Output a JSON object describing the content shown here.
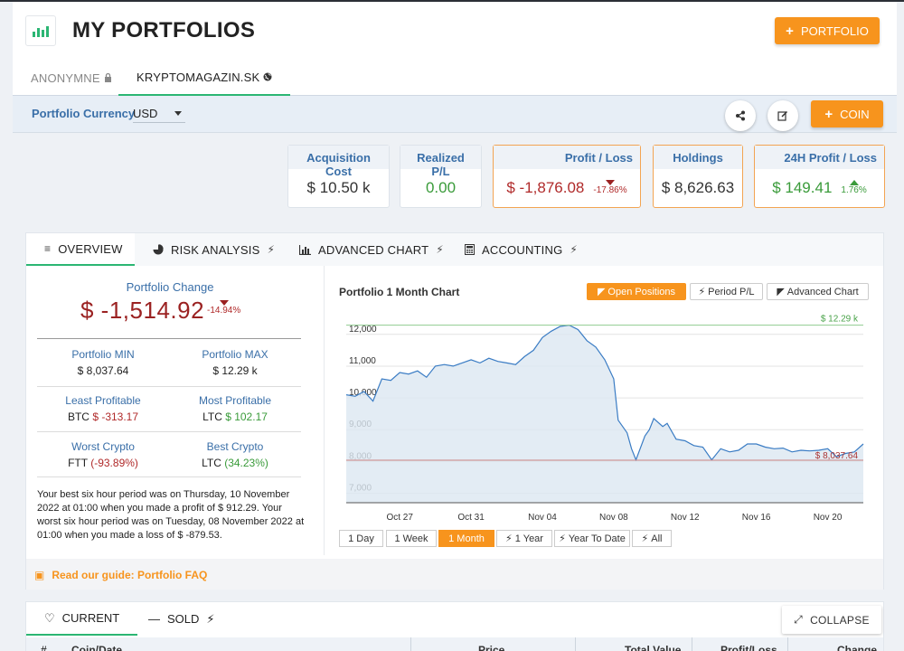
{
  "header": {
    "title": "MY PORTFOLIOS",
    "add_portfolio": "PORTFOLIO"
  },
  "portfolio_tabs": [
    {
      "label": "ANONYMNE",
      "icon": "lock-icon"
    },
    {
      "label": "KRYPTOMAGAZIN.SK",
      "icon": "globe-icon"
    }
  ],
  "currency": {
    "label": "Portfolio Currency",
    "value": "USD"
  },
  "toolbar": {
    "add_coin": "COIN"
  },
  "cards": {
    "acquisition": {
      "title": "Acquisition Cost",
      "value": "$ 10.50 k"
    },
    "realized": {
      "title": "Realized P/L",
      "value": "0.00"
    },
    "profit_loss": {
      "title": "Profit / Loss",
      "value": "$ -1,876.08",
      "change": "-17.86%"
    },
    "holdings": {
      "title": "Holdings",
      "value": "$ 8,626.63"
    },
    "h24": {
      "title": "24H Profit / Loss",
      "value": "$ 149.41",
      "change": "1.76%"
    }
  },
  "overview_tabs": [
    "OVERVIEW",
    "RISK ANALYSIS",
    "ADVANCED CHART",
    "ACCOUNTING"
  ],
  "overview": {
    "change_label": "Portfolio Change",
    "change_value": "$ -1,514.92",
    "change_pct": "-14.94%",
    "min_label": "Portfolio MIN",
    "min_value": "$ 8,037.64",
    "max_label": "Portfolio MAX",
    "max_value": "$ 12.29 k",
    "least_label": "Least Profitable",
    "least_coin": "BTC",
    "least_value": "$ -313.17",
    "most_label": "Most Profitable",
    "most_coin": "LTC",
    "most_value": "$ 102.17",
    "worst_label": "Worst Crypto",
    "worst_coin": "FTT",
    "worst_value": "(-93.89%)",
    "best_label": "Best Crypto",
    "best_coin": "LTC",
    "best_value": "(34.23%)",
    "summary": "Your best six hour period was on Thursday, 10 November 2022 at 01:00 when you made a profit of $ 912.29. Your worst six hour period was on Tuesday, 08 November 2022 at 01:00 when you made a loss of $ -879.53."
  },
  "chart_controls": {
    "title": "Portfolio 1 Month Chart",
    "view_buttons": [
      "Open Positions",
      "Period P/L",
      "Advanced Chart"
    ],
    "range_buttons": [
      "1 Day",
      "1 Week",
      "1 Month",
      "1 Year",
      "Year To Date",
      "All"
    ]
  },
  "chart_data": {
    "type": "area",
    "title": "Portfolio 1 Month Chart",
    "x_ticks": [
      "Oct 27",
      "Oct 31",
      "Nov 04",
      "Nov 08",
      "Nov 12",
      "Nov 16",
      "Nov 20"
    ],
    "y_ticks": [
      7000,
      8000,
      9000,
      10000,
      11000,
      12000
    ],
    "ylim": [
      6700,
      12450
    ],
    "xlim": [
      "2022-10-24",
      "2022-11-22"
    ],
    "max_label": "$ 12.29 k",
    "min_label": "$ 8,037.64",
    "max_value": 12290,
    "min_value": 8037.64,
    "series": [
      {
        "points": [
          [
            "2022-10-24",
            10100
          ],
          [
            "2022-10-24 12:00",
            10050
          ],
          [
            "2022-10-25",
            10200
          ],
          [
            "2022-10-25 12:00",
            9900
          ],
          [
            "2022-10-26",
            10600
          ],
          [
            "2022-10-26 12:00",
            10550
          ],
          [
            "2022-10-27",
            10800
          ],
          [
            "2022-10-27 12:00",
            10750
          ],
          [
            "2022-10-28",
            10850
          ],
          [
            "2022-10-28 12:00",
            10650
          ],
          [
            "2022-10-29",
            11000
          ],
          [
            "2022-10-29 12:00",
            11050
          ],
          [
            "2022-10-30",
            11000
          ],
          [
            "2022-10-30 12:00",
            11100
          ],
          [
            "2022-10-31",
            11200
          ],
          [
            "2022-10-31 12:00",
            11100
          ],
          [
            "2022-11-01",
            11250
          ],
          [
            "2022-11-01 12:00",
            11150
          ],
          [
            "2022-11-02",
            11100
          ],
          [
            "2022-11-02 12:00",
            11050
          ],
          [
            "2022-11-03",
            11300
          ],
          [
            "2022-11-03 12:00",
            11500
          ],
          [
            "2022-11-04",
            11900
          ],
          [
            "2022-11-04 12:00",
            12100
          ],
          [
            "2022-11-05",
            12250
          ],
          [
            "2022-11-05 12:00",
            12290
          ],
          [
            "2022-11-06",
            12150
          ],
          [
            "2022-11-06 12:00",
            11800
          ],
          [
            "2022-11-07",
            11600
          ],
          [
            "2022-11-07 12:00",
            11200
          ],
          [
            "2022-11-08",
            10600
          ],
          [
            "2022-11-08 06:00",
            9300
          ],
          [
            "2022-11-08 18:00",
            8900
          ],
          [
            "2022-11-09",
            8400
          ],
          [
            "2022-11-09 06:00",
            8050
          ],
          [
            "2022-11-09 18:00",
            8800
          ],
          [
            "2022-11-10",
            9000
          ],
          [
            "2022-11-10 06:00",
            9350
          ],
          [
            "2022-11-10 18:00",
            9100
          ],
          [
            "2022-11-11",
            9200
          ],
          [
            "2022-11-11 12:00",
            8700
          ],
          [
            "2022-11-12",
            8650
          ],
          [
            "2022-11-12 12:00",
            8500
          ],
          [
            "2022-11-13",
            8450
          ],
          [
            "2022-11-13 12:00",
            8050
          ],
          [
            "2022-11-14",
            8400
          ],
          [
            "2022-11-14 12:00",
            8300
          ],
          [
            "2022-11-15",
            8350
          ],
          [
            "2022-11-15 12:00",
            8550
          ],
          [
            "2022-11-16",
            8550
          ],
          [
            "2022-11-16 12:00",
            8450
          ],
          [
            "2022-11-17",
            8400
          ],
          [
            "2022-11-17 12:00",
            8420
          ],
          [
            "2022-11-18",
            8300
          ],
          [
            "2022-11-18 12:00",
            8350
          ],
          [
            "2022-11-19",
            8330
          ],
          [
            "2022-11-19 12:00",
            8350
          ],
          [
            "2022-11-20",
            8400
          ],
          [
            "2022-11-20 12:00",
            8150
          ],
          [
            "2022-11-21",
            8250
          ],
          [
            "2022-11-21 12:00",
            8300
          ],
          [
            "2022-11-22",
            8550
          ]
        ]
      }
    ]
  },
  "guide": {
    "label": "Read our guide: Portfolio FAQ"
  },
  "positions": {
    "tabs": [
      "CURRENT",
      "SOLD"
    ],
    "collapse": "COLLAPSE",
    "columns": [
      "#",
      "Coin/Date",
      "Price",
      "Total Value",
      "Profit/Loss",
      "Change"
    ]
  },
  "colors": {
    "accent": "#f7941d",
    "positive": "#3a9b3a",
    "negative": "#9b2222",
    "link": "#3a6fa8",
    "active_tab": "#2bb673"
  }
}
